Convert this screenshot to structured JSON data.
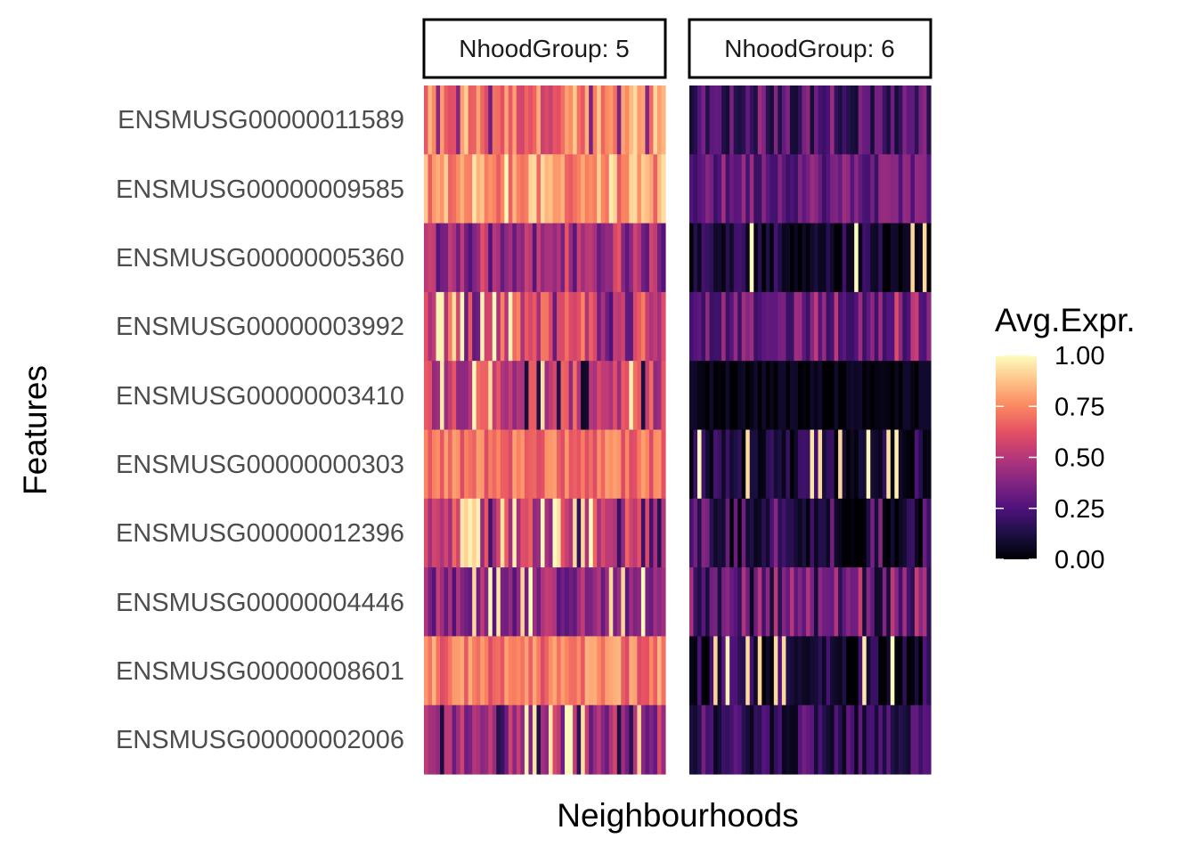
{
  "chart_data": {
    "type": "heatmap",
    "xlabel": "Neighbourhoods",
    "ylabel": "Features",
    "features": [
      "ENSMUSG00000011589",
      "ENSMUSG00000009585",
      "ENSMUSG00000005360",
      "ENSMUSG00000003992",
      "ENSMUSG00000003410",
      "ENSMUSG00000000303",
      "ENSMUSG00000012396",
      "ENSMUSG00000004446",
      "ENSMUSG00000008601",
      "ENSMUSG00000002006"
    ],
    "panels": [
      {
        "label": "NhoodGroup: 5",
        "columns": 60,
        "row_profiles": [
          {
            "feature": "ENSMUSG00000011589",
            "min": 0.3,
            "max": 0.95,
            "typical": 0.7
          },
          {
            "feature": "ENSMUSG00000009585",
            "min": 0.65,
            "max": 1.0,
            "typical": 0.78
          },
          {
            "feature": "ENSMUSG00000005360",
            "min": 0.25,
            "max": 0.65,
            "typical": 0.42
          },
          {
            "feature": "ENSMUSG00000003992",
            "min": 0.25,
            "max": 1.0,
            "typical": 0.6
          },
          {
            "feature": "ENSMUSG00000003410",
            "min": 0.05,
            "max": 1.0,
            "typical": 0.55
          },
          {
            "feature": "ENSMUSG00000000303",
            "min": 0.6,
            "max": 0.8,
            "typical": 0.7
          },
          {
            "feature": "ENSMUSG00000012396",
            "min": 0.15,
            "max": 1.0,
            "typical": 0.55
          },
          {
            "feature": "ENSMUSG00000004446",
            "min": 0.25,
            "max": 1.0,
            "typical": 0.4
          },
          {
            "feature": "ENSMUSG00000008601",
            "min": 0.6,
            "max": 0.85,
            "typical": 0.72
          },
          {
            "feature": "ENSMUSG00000002006",
            "min": 0.1,
            "max": 1.0,
            "typical": 0.45
          }
        ]
      },
      {
        "label": "NhoodGroup: 6",
        "columns": 60,
        "row_profiles": [
          {
            "feature": "ENSMUSG00000011589",
            "min": 0.1,
            "max": 0.45,
            "typical": 0.22
          },
          {
            "feature": "ENSMUSG00000009585",
            "min": 0.2,
            "max": 0.45,
            "typical": 0.32
          },
          {
            "feature": "ENSMUSG00000005360",
            "min": 0.0,
            "max": 1.0,
            "typical": 0.1
          },
          {
            "feature": "ENSMUSG00000003992",
            "min": 0.2,
            "max": 0.6,
            "typical": 0.3
          },
          {
            "feature": "ENSMUSG00000003410",
            "min": 0.0,
            "max": 0.08,
            "typical": 0.02
          },
          {
            "feature": "ENSMUSG00000000303",
            "min": 0.0,
            "max": 1.0,
            "typical": 0.1
          },
          {
            "feature": "ENSMUSG00000012396",
            "min": 0.0,
            "max": 0.4,
            "typical": 0.1
          },
          {
            "feature": "ENSMUSG00000004446",
            "min": 0.05,
            "max": 0.55,
            "typical": 0.25
          },
          {
            "feature": "ENSMUSG00000008601",
            "min": 0.0,
            "max": 1.0,
            "typical": 0.12
          },
          {
            "feature": "ENSMUSG00000002006",
            "min": 0.05,
            "max": 0.35,
            "typical": 0.15
          }
        ]
      }
    ],
    "legend": {
      "title": "Avg.Expr.",
      "ticks": [
        1.0,
        0.75,
        0.5,
        0.25,
        0.0
      ],
      "tick_labels": [
        "1.00",
        "0.75",
        "0.50",
        "0.25",
        "0.00"
      ],
      "range": [
        0,
        1
      ],
      "colormap": "magma",
      "stops": [
        "#000004",
        "#1c1044",
        "#4f127b",
        "#812581",
        "#b5367a",
        "#e55064",
        "#fb8761",
        "#fec287",
        "#fcfdbf"
      ]
    }
  }
}
